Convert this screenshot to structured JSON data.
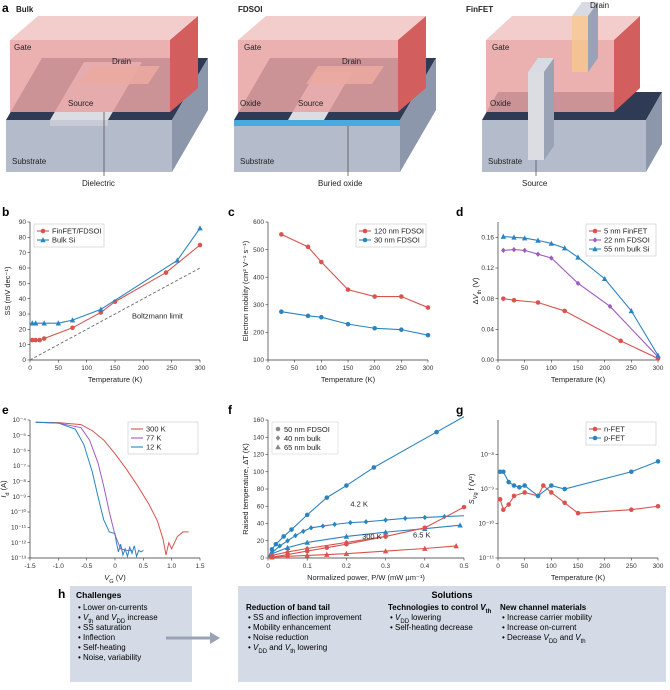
{
  "panel_letters": {
    "a": "a",
    "b": "b",
    "c": "c",
    "d": "d",
    "e": "e",
    "f": "f",
    "g": "g",
    "h": "h"
  },
  "devices": {
    "bulk": {
      "title": "Bulk",
      "gate": "Gate",
      "drain": "Drain",
      "source": "Source",
      "substrate": "Substrate",
      "callout": "Dielectric"
    },
    "fdsoi": {
      "title": "FDSOI",
      "gate": "Gate",
      "drain": "Drain",
      "source": "Source",
      "oxide": "Oxide",
      "substrate": "Substrate",
      "callout": "Buried oxide"
    },
    "finfet": {
      "title": "FinFET",
      "gate": "Gate",
      "drain": "Drain",
      "oxide": "Oxide",
      "substrate": "Substrate",
      "callout": "Source"
    }
  },
  "colors": {
    "red": "#d9534f",
    "blue": "#2b84c0",
    "purple": "#a05bbf",
    "gray": "#8a8a8a",
    "gate": "#e8a3a3",
    "substrate": "#b4bccb",
    "dark": "#2f3b55"
  },
  "chart_data": [
    {
      "id": "b",
      "type": "line",
      "xlabel": "Temperature (K)",
      "ylabel": "SS (mV dec⁻¹)",
      "xlim": [
        0,
        300
      ],
      "ylim": [
        0,
        90
      ],
      "xticks": [
        0,
        50,
        100,
        150,
        200,
        250,
        300
      ],
      "yticks": [
        0,
        10,
        20,
        30,
        40,
        50,
        60,
        70,
        80,
        90
      ],
      "legend": "top-left",
      "series": [
        {
          "name": "FinFET/FDSOI",
          "color": "#d9534f",
          "marker": "circle",
          "x": [
            4,
            10,
            17,
            25,
            75,
            125,
            150,
            240,
            300
          ],
          "y": [
            13,
            13,
            13,
            14,
            21,
            31,
            38,
            57,
            75
          ]
        },
        {
          "name": "Bulk Si",
          "color": "#2b84c0",
          "marker": "triangle",
          "x": [
            4,
            10,
            25,
            50,
            75,
            125,
            260,
            300
          ],
          "y": [
            24,
            24,
            24,
            24,
            26,
            33,
            65,
            86
          ]
        }
      ],
      "annotation": "Boltzmann limit",
      "reference_line": {
        "x": [
          0,
          300
        ],
        "y": [
          0,
          60
        ]
      }
    },
    {
      "id": "c",
      "type": "line",
      "xlabel": "Temperature (K)",
      "ylabel": "Electron mobility (cm² V⁻¹ s⁻¹)",
      "xlim": [
        0,
        300
      ],
      "ylim": [
        100,
        600
      ],
      "xticks": [
        0,
        50,
        100,
        150,
        200,
        250,
        300
      ],
      "yticks": [
        100,
        200,
        300,
        400,
        500,
        600
      ],
      "legend": "top-right",
      "series": [
        {
          "name": "120 nm FDSOI",
          "color": "#d9534f",
          "marker": "circle",
          "x": [
            25,
            75,
            100,
            150,
            200,
            250,
            300
          ],
          "y": [
            555,
            510,
            455,
            355,
            330,
            330,
            290
          ]
        },
        {
          "name": "30 nm FDSOI",
          "color": "#2b84c0",
          "marker": "circle",
          "x": [
            25,
            75,
            100,
            150,
            200,
            250,
            300
          ],
          "y": [
            275,
            260,
            255,
            230,
            215,
            210,
            190
          ]
        }
      ]
    },
    {
      "id": "d",
      "type": "line",
      "xlabel": "Temperature (K)",
      "ylabel": "ΔV_th (V)",
      "xlim": [
        0,
        300
      ],
      "ylim": [
        0,
        0.18
      ],
      "xticks": [
        0,
        50,
        100,
        150,
        200,
        250,
        300
      ],
      "yticks": [
        0,
        0.04,
        0.08,
        0.12,
        0.16
      ],
      "ytick_labels": [
        "0.00",
        "0.04",
        "0.08",
        "0.12",
        "0.16"
      ],
      "legend": "top-right",
      "series": [
        {
          "name": "5 nm FinFET",
          "color": "#d9534f",
          "marker": "circle",
          "x": [
            10,
            30,
            75,
            125,
            230,
            300
          ],
          "y": [
            0.08,
            0.078,
            0.075,
            0.064,
            0.025,
            0.002
          ]
        },
        {
          "name": "22 nm FDSOI",
          "color": "#a05bbf",
          "marker": "diamond",
          "x": [
            10,
            30,
            50,
            75,
            100,
            150,
            210,
            300
          ],
          "y": [
            0.143,
            0.144,
            0.143,
            0.138,
            0.133,
            0.1,
            0.07,
            0.004
          ]
        },
        {
          "name": "55 nm bulk Si",
          "color": "#2b84c0",
          "marker": "triangle",
          "x": [
            10,
            30,
            50,
            75,
            100,
            125,
            150,
            200,
            250,
            300
          ],
          "y": [
            0.161,
            0.16,
            0.159,
            0.156,
            0.152,
            0.146,
            0.134,
            0.106,
            0.064,
            0.006
          ]
        }
      ]
    },
    {
      "id": "e",
      "type": "line",
      "xlabel": "V_G (V)",
      "ylabel": "I_d (A)",
      "yscale": "log",
      "xlim": [
        -1.5,
        1.5
      ],
      "ylim": [
        -13,
        -4
      ],
      "xticks": [
        -1.5,
        -1,
        -0.5,
        0,
        0.5,
        1,
        1.5
      ],
      "xtick_labels": [
        "-1.5",
        "-1.0",
        "-0.5",
        "0",
        "0.5",
        "1.0",
        "1.5"
      ],
      "yticks": [
        -13,
        -12,
        -11,
        -10,
        -9,
        -8,
        -7,
        -6,
        -5,
        -4
      ],
      "ytick_labels": [
        "10⁻¹³",
        "10⁻¹²",
        "10⁻¹¹",
        "10⁻¹⁰",
        "10⁻⁹",
        "10⁻⁸",
        "10⁻⁷",
        "10⁻⁶",
        "10⁻⁵",
        "10⁻⁴"
      ],
      "legend": "top-right",
      "series": [
        {
          "name": "300 K",
          "color": "#d9534f",
          "x": [
            -1.4,
            -1.0,
            -0.6,
            -0.4,
            -0.2,
            0,
            0.2,
            0.4,
            0.6,
            0.75,
            0.85,
            0.9,
            0.95,
            1.0,
            1.1,
            1.2,
            1.3
          ],
          "y": [
            -4.15,
            -4.17,
            -4.3,
            -4.7,
            -5.3,
            -6.2,
            -7.2,
            -8.3,
            -9.5,
            -10.6,
            -11.8,
            -12.8,
            -12,
            -12.4,
            -11.6,
            -11.3,
            -11.3
          ]
        },
        {
          "name": "77 K",
          "color": "#a05bbf",
          "x": [
            -1.4,
            -1.0,
            -0.6,
            -0.45,
            -0.3,
            -0.2,
            -0.1,
            0,
            0.1,
            0.2,
            0.3
          ],
          "y": [
            -4.15,
            -4.2,
            -4.5,
            -5.3,
            -6.8,
            -8.3,
            -10,
            -11.5,
            -12.4,
            -12.5,
            -12.5
          ]
        },
        {
          "name": "12 K",
          "color": "#2b84c0",
          "x": [
            -1.4,
            -1.0,
            -0.7,
            -0.55,
            -0.4,
            -0.3,
            -0.2,
            -0.1,
            0,
            0.02,
            0.06,
            0.1,
            0.14,
            0.18,
            0.22,
            0.26,
            0.3,
            0.34,
            0.38,
            0.42,
            0.46,
            0.5
          ],
          "y": [
            -4.15,
            -4.2,
            -4.6,
            -5.6,
            -7.4,
            -9,
            -10.5,
            -11.3,
            -11.4,
            -11.9,
            -12.6,
            -12.1,
            -12.8,
            -12.4,
            -12.9,
            -12.3,
            -12.7,
            -12.2,
            -12.9,
            -12.5,
            -12.6,
            -12.5
          ]
        }
      ]
    },
    {
      "id": "f",
      "type": "scatter",
      "xlabel": "Normalized power, P/W (mW µm⁻¹)",
      "ylabel": "Raised temperature, ΔT (K)",
      "xlim": [
        0,
        0.5
      ],
      "ylim": [
        0,
        160
      ],
      "xticks": [
        0,
        0.1,
        0.2,
        0.3,
        0.4,
        0.5
      ],
      "xtick_labels": [
        "0",
        "0.1",
        "0.2",
        "0.3",
        "0.4",
        "0.5"
      ],
      "yticks": [
        0,
        20,
        40,
        60,
        80,
        100,
        120,
        140,
        160
      ],
      "legend": "top-left",
      "legend_entries": [
        {
          "name": "50 nm FDSOI",
          "color": "#8a8a8a",
          "marker": "circle"
        },
        {
          "name": "40 nm bulk",
          "color": "#8a8a8a",
          "marker": "diamond"
        },
        {
          "name": "65 nm bulk",
          "color": "#8a8a8a",
          "marker": "triangle"
        }
      ],
      "annotations": [
        "4.2 K",
        "300 K",
        "6.5 K"
      ],
      "series": [
        {
          "color": "#2b84c0",
          "marker": "circle",
          "fit": "sqrt",
          "x": [
            0.01,
            0.02,
            0.04,
            0.06,
            0.1,
            0.15,
            0.2,
            0.27,
            0.43
          ],
          "y": [
            10,
            16,
            25,
            33,
            50,
            70,
            84,
            105,
            146
          ]
        },
        {
          "color": "#2b84c0",
          "marker": "diamond",
          "fit": "sqrt",
          "x": [
            0.01,
            0.03,
            0.05,
            0.07,
            0.09,
            0.11,
            0.14,
            0.17,
            0.21,
            0.25,
            0.3,
            0.35,
            0.4,
            0.45
          ],
          "y": [
            6,
            14,
            20,
            26,
            31,
            35,
            37,
            39,
            41,
            42,
            44,
            46,
            47,
            48
          ]
        },
        {
          "color": "#2b84c0",
          "marker": "triangle",
          "fit": "line",
          "x": [
            0.01,
            0.05,
            0.1,
            0.2,
            0.3,
            0.4,
            0.49
          ],
          "y": [
            5,
            12,
            18,
            25,
            30,
            34,
            38
          ]
        },
        {
          "color": "#d9534f",
          "marker": "circle",
          "fit": "line",
          "x": [
            0.01,
            0.05,
            0.1,
            0.15,
            0.2,
            0.3,
            0.4,
            0.5
          ],
          "y": [
            1,
            4,
            8,
            12,
            16,
            25,
            35,
            59
          ]
        },
        {
          "color": "#d9534f",
          "marker": "diamond",
          "fit": "line",
          "x": [
            0.01,
            0.05,
            0.1,
            0.2,
            0.3
          ],
          "y": [
            3,
            7,
            11,
            18,
            25
          ]
        },
        {
          "color": "#d9534f",
          "marker": "triangle",
          "fit": "line",
          "x": [
            0.01,
            0.05,
            0.1,
            0.15,
            0.2,
            0.3,
            0.4,
            0.48
          ],
          "y": [
            1,
            2,
            3,
            4,
            5,
            8,
            11,
            14
          ]
        }
      ]
    },
    {
      "id": "g",
      "type": "line",
      "xlabel": "Temperature (K)",
      "ylabel": "S_Vg f (V²)",
      "yscale": "log",
      "xlim": [
        0,
        300
      ],
      "ylim": [
        -11,
        -7
      ],
      "xticks": [
        0,
        50,
        100,
        150,
        200,
        250,
        300
      ],
      "yticks": [
        -11,
        -10,
        -9,
        -8
      ],
      "ytick_labels": [
        "10⁻¹¹",
        "10⁻¹⁰",
        "10⁻⁹",
        "10⁻⁸"
      ],
      "legend": "top-right",
      "series": [
        {
          "name": "n-FET",
          "color": "#d9534f",
          "marker": "circle",
          "x": [
            4,
            10,
            20,
            30,
            50,
            75,
            85,
            100,
            125,
            150,
            250,
            300
          ],
          "y": [
            -9.3,
            -9.6,
            -9.45,
            -9.2,
            -9.1,
            -9.2,
            -8.9,
            -9.1,
            -9.4,
            -9.7,
            -9.6,
            -9.5
          ]
        },
        {
          "name": "p-FET",
          "color": "#2b84c0",
          "marker": "circle",
          "x": [
            4,
            10,
            20,
            30,
            40,
            50,
            75,
            100,
            125,
            250,
            300
          ],
          "y": [
            -8.5,
            -8.5,
            -8.8,
            -8.9,
            -8.95,
            -8.9,
            -9.2,
            -8.9,
            -9.0,
            -8.5,
            -8.2
          ]
        }
      ]
    }
  ],
  "panel_h": {
    "challenges": {
      "title": "Challenges",
      "items": [
        "Lower on-currents",
        "V_th and V_DD increase",
        "SS saturation",
        "Inflection",
        "Self-heating",
        "Noise, variability"
      ]
    },
    "solutions_title": "Solutions",
    "columns": [
      {
        "title": "Reduction of band tail",
        "items": [
          "SS and inflection improvement",
          "Mobility enhancement",
          "Noise reduction",
          "V_DD and V_th lowering"
        ]
      },
      {
        "title": "Technologies to control V_th",
        "items": [
          "V_DD lowering",
          "Self-heating decrease"
        ]
      },
      {
        "title": "New channel materials",
        "items": [
          "Increase carrier mobility",
          "Increase on-current",
          "Decrease V_DD and V_th"
        ]
      }
    ]
  }
}
